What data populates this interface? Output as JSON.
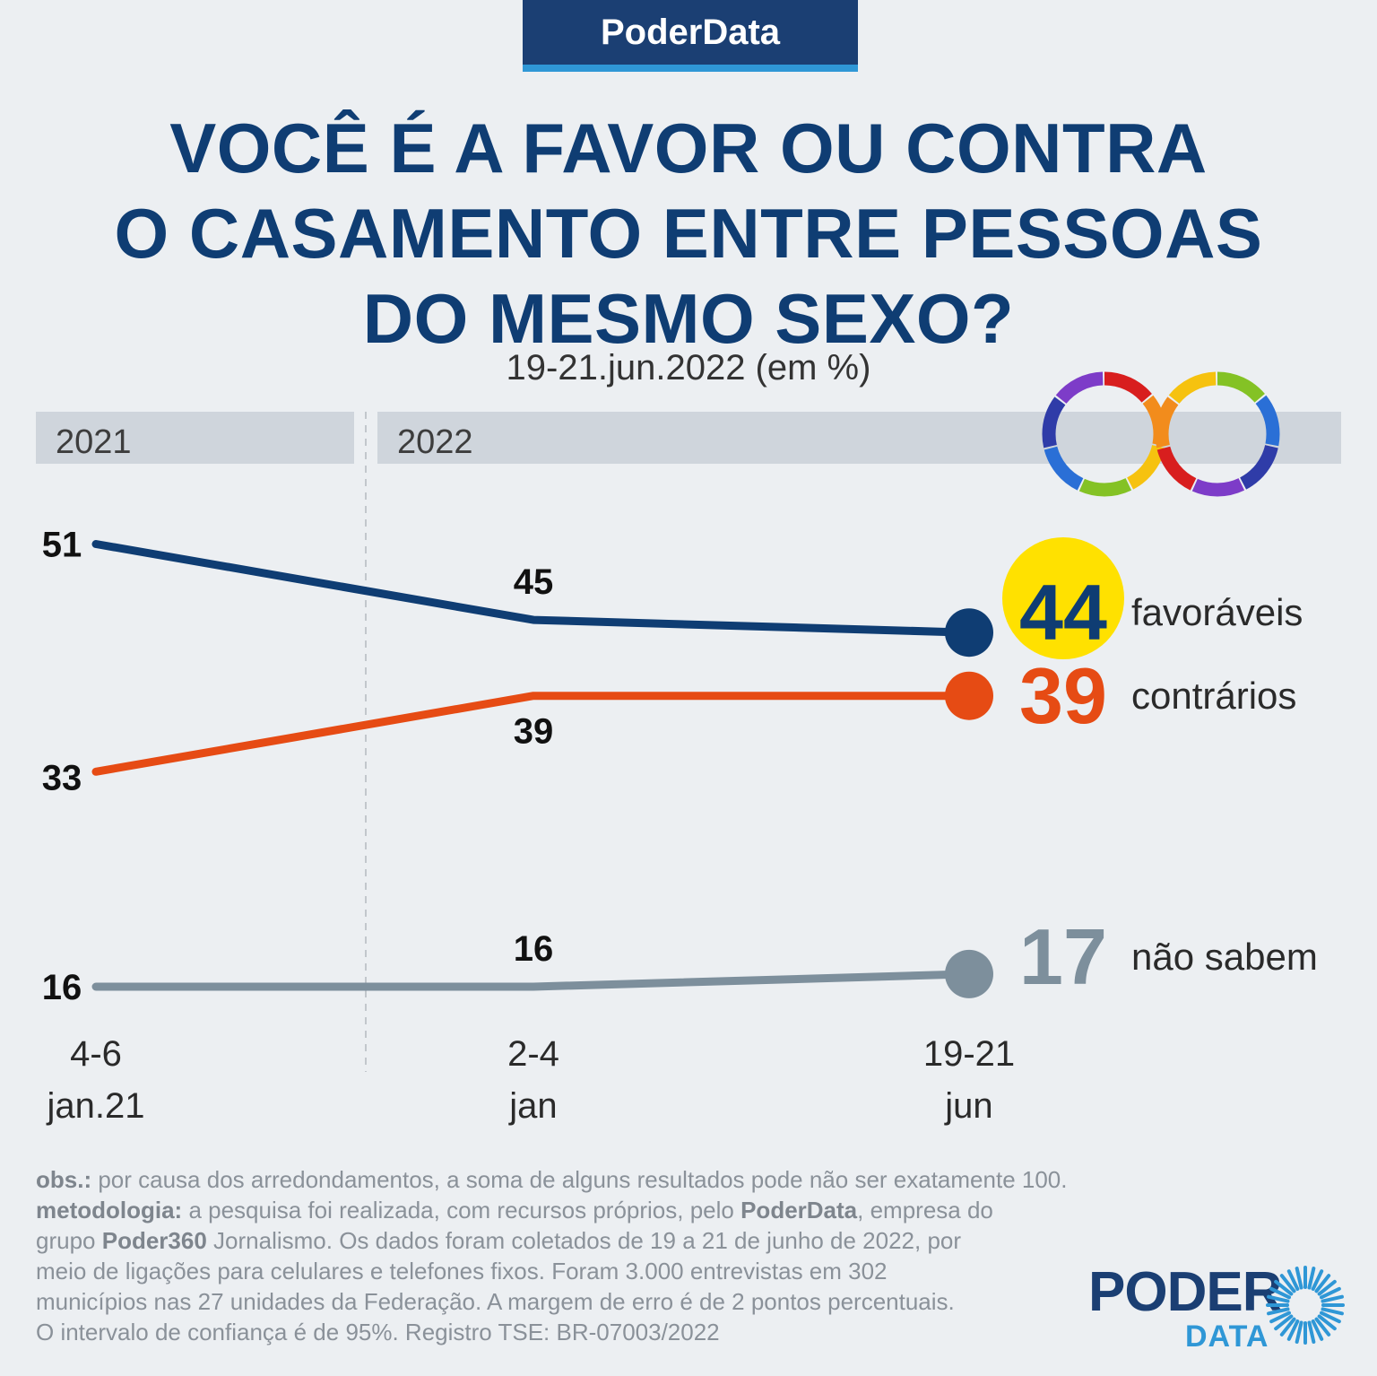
{
  "brand": "PoderData",
  "title_lines": [
    "VOCÊ É A FAVOR OU CONTRA",
    "O CASAMENTO ENTRE PESSOAS",
    "DO MESMO SEXO?"
  ],
  "subtitle": "19-21.jun.2022 (em %)",
  "chart_data": {
    "type": "line",
    "title": "VOCÊ É A FAVOR OU CONTRA O CASAMENTO ENTRE PESSOAS DO MESMO SEXO?",
    "subtitle": "19-21.jun.2022 (em %)",
    "year_bands": [
      "2021",
      "2022"
    ],
    "x": [
      {
        "top": "4-6",
        "bottom": "jan.21"
      },
      {
        "top": "2-4",
        "bottom": "jan"
      },
      {
        "top": "19-21",
        "bottom": "jun"
      }
    ],
    "series": [
      {
        "name": "favoráveis",
        "values": [
          51,
          45,
          44
        ],
        "color": "#0f3d73"
      },
      {
        "name": "contrários",
        "values": [
          33,
          39,
          39
        ],
        "color": "#e64b14"
      },
      {
        "name": "não sabem",
        "values": [
          16,
          16,
          17
        ],
        "color": "#7d8f9c"
      }
    ],
    "highlight_color": "#ffe100",
    "grid": false,
    "legend": "right"
  },
  "footer": {
    "obs_label": "obs.:",
    "obs_text": " por causa dos arredondamentos, a soma de alguns resultados pode não ser exatamente 100.",
    "method_label": "metodologia:",
    "method_1": " a pesquisa foi realizada, com recursos próprios, pelo ",
    "method_poderdata": "PoderData",
    "method_2": ", empresa do",
    "method_3": "grupo ",
    "method_poder360": "Poder360",
    "method_4": " Jornalismo. Os dados foram coletados de 19 a 21 de junho de 2022, por",
    "line_4": "meio de ligações para celulares e telefones fixos. Foram 3.000 entrevistas em 302",
    "line_5": "municípios nas 27 unidades da Federação. A margem de erro é de 2 pontos percentuais.",
    "line_6": "O intervalo de confiança é de 95%. Registro TSE: BR-07003/2022"
  },
  "logo": {
    "word1": "PODER",
    "word2": "DATA"
  }
}
